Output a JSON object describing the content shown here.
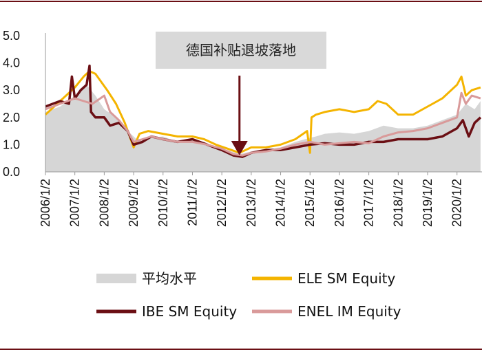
{
  "chart_data": {
    "type": "area",
    "title": "",
    "xlabel": "",
    "ylabel": "",
    "ylim": [
      0,
      5
    ],
    "y_ticks": [
      "0.0",
      "1.0",
      "2.0",
      "3.0",
      "4.0",
      "5.0"
    ],
    "x_ticks": [
      "2006/1/2",
      "2007/1/2",
      "2008/1/2",
      "2009/1/2",
      "2010/1/2",
      "2011/1/2",
      "2012/1/2",
      "2013/1/2",
      "2014/1/2",
      "2015/1/2",
      "2016/1/2",
      "2017/1/2",
      "2018/1/2",
      "2019/1/2",
      "2020/1/2"
    ],
    "grid": false,
    "legend": "bottom",
    "annotation": "德国补贴退坡落地",
    "annotation_x": 2012.6,
    "colors": {
      "average": "#d6d6d6",
      "ELE": "#f4b400",
      "IBE": "#6b0f14",
      "ENEL": "#d99a9a",
      "annotation_box": "#d9d9d9",
      "arrow": "#6b0f14"
    },
    "series": [
      {
        "name": "平均水平",
        "kind": "area",
        "x": [
          2006.0,
          2006.5,
          2007.0,
          2007.4,
          2007.7,
          2008.0,
          2008.4,
          2008.8,
          2009.1,
          2009.5,
          2010.0,
          2010.5,
          2011.0,
          2011.4,
          2011.8,
          2012.2,
          2012.6,
          2013.0,
          2013.5,
          2014.0,
          2014.5,
          2015.0,
          2015.2,
          2015.5,
          2016.0,
          2016.5,
          2017.0,
          2017.5,
          2018.0,
          2018.5,
          2019.0,
          2019.5,
          2020.0,
          2020.3,
          2020.6,
          2020.8
        ],
        "y": [
          2.2,
          2.4,
          2.8,
          3.2,
          2.8,
          2.3,
          2.0,
          1.5,
          1.2,
          1.25,
          1.3,
          1.1,
          1.2,
          1.1,
          0.9,
          0.8,
          0.65,
          0.75,
          0.85,
          0.9,
          1.1,
          1.25,
          1.3,
          1.4,
          1.45,
          1.4,
          1.5,
          1.7,
          1.6,
          1.6,
          1.7,
          1.9,
          2.1,
          2.5,
          2.3,
          2.6
        ]
      },
      {
        "name": "ELE SM Equity",
        "kind": "line",
        "x": [
          2006.0,
          2006.5,
          2007.0,
          2007.3,
          2007.5,
          2007.7,
          2007.9,
          2008.1,
          2008.4,
          2008.7,
          2009.0,
          2009.2,
          2009.5,
          2010.0,
          2010.5,
          2011.0,
          2011.4,
          2011.8,
          2012.2,
          2012.6,
          2013.0,
          2013.5,
          2014.0,
          2014.5,
          2014.9,
          2015.0,
          2015.05,
          2015.2,
          2015.5,
          2016.0,
          2016.5,
          2017.0,
          2017.3,
          2017.6,
          2018.0,
          2018.5,
          2019.0,
          2019.5,
          2020.0,
          2020.15,
          2020.3,
          2020.5,
          2020.8
        ],
        "y": [
          2.1,
          2.6,
          3.1,
          3.5,
          3.7,
          3.6,
          3.3,
          3.0,
          2.5,
          1.8,
          0.9,
          1.4,
          1.5,
          1.4,
          1.3,
          1.3,
          1.2,
          1.0,
          0.85,
          0.7,
          0.9,
          0.9,
          1.0,
          1.2,
          1.5,
          0.7,
          2.0,
          2.1,
          2.2,
          2.3,
          2.2,
          2.3,
          2.6,
          2.5,
          2.1,
          2.1,
          2.4,
          2.7,
          3.2,
          3.5,
          2.8,
          3.0,
          3.1
        ]
      },
      {
        "name": "IBE SM Equity",
        "kind": "line",
        "x": [
          2006.0,
          2006.5,
          2006.8,
          2006.9,
          2007.0,
          2007.2,
          2007.4,
          2007.5,
          2007.55,
          2007.7,
          2008.0,
          2008.2,
          2008.5,
          2008.8,
          2009.0,
          2009.3,
          2009.6,
          2010.0,
          2010.5,
          2011.0,
          2011.5,
          2012.0,
          2012.4,
          2012.7,
          2013.0,
          2013.5,
          2014.0,
          2014.5,
          2015.0,
          2015.5,
          2016.0,
          2016.5,
          2017.0,
          2017.5,
          2018.0,
          2018.5,
          2019.0,
          2019.5,
          2020.0,
          2020.2,
          2020.4,
          2020.6,
          2020.8
        ],
        "y": [
          2.4,
          2.6,
          2.5,
          3.5,
          2.7,
          3.0,
          3.2,
          3.9,
          2.2,
          2.0,
          2.0,
          1.7,
          1.8,
          1.5,
          1.0,
          1.1,
          1.3,
          1.2,
          1.1,
          1.2,
          1.0,
          0.8,
          0.6,
          0.55,
          0.7,
          0.8,
          0.8,
          0.9,
          1.0,
          1.05,
          1.0,
          1.0,
          1.1,
          1.1,
          1.2,
          1.2,
          1.2,
          1.3,
          1.6,
          1.9,
          1.3,
          1.8,
          2.0
        ]
      },
      {
        "name": "ENEL IM Equity",
        "kind": "line",
        "x": [
          2006.0,
          2006.5,
          2007.0,
          2007.3,
          2007.6,
          2008.0,
          2008.2,
          2008.5,
          2008.8,
          2009.0,
          2009.3,
          2009.6,
          2010.0,
          2010.5,
          2011.0,
          2011.5,
          2012.0,
          2012.4,
          2012.7,
          2013.0,
          2013.5,
          2014.0,
          2014.5,
          2015.0,
          2015.5,
          2016.0,
          2016.5,
          2017.0,
          2017.5,
          2018.0,
          2018.5,
          2019.0,
          2019.5,
          2020.0,
          2020.15,
          2020.3,
          2020.5,
          2020.8
        ],
        "y": [
          2.3,
          2.5,
          2.7,
          2.6,
          2.5,
          2.8,
          2.2,
          1.9,
          1.5,
          1.1,
          1.2,
          1.3,
          1.2,
          1.1,
          1.1,
          1.0,
          0.85,
          0.65,
          0.6,
          0.7,
          0.75,
          0.85,
          1.0,
          1.1,
          1.0,
          1.05,
          1.1,
          1.05,
          1.3,
          1.45,
          1.5,
          1.6,
          1.8,
          2.0,
          2.9,
          2.5,
          2.8,
          2.7
        ]
      }
    ]
  }
}
